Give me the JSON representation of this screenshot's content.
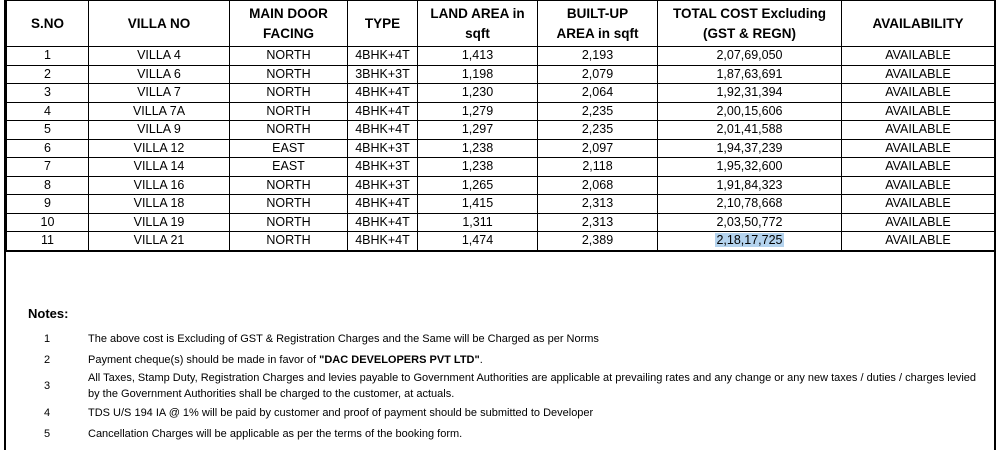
{
  "table": {
    "headers": [
      [
        "S.NO"
      ],
      [
        "VILLA NO"
      ],
      [
        "MAIN DOOR",
        "FACING"
      ],
      [
        "TYPE"
      ],
      [
        "LAND AREA in",
        "sqft"
      ],
      [
        "BUILT-UP",
        "AREA in sqft"
      ],
      [
        "TOTAL COST  Excluding",
        "(GST & REGN)"
      ],
      [
        "AVAILABILITY"
      ]
    ],
    "rows": [
      [
        "1",
        "VILLA 4",
        "NORTH",
        "4BHK+4T",
        "1,413",
        "2,193",
        "2,07,69,050",
        "AVAILABLE"
      ],
      [
        "2",
        "VILLA 6",
        "NORTH",
        "3BHK+3T",
        "1,198",
        "2,079",
        "1,87,63,691",
        "AVAILABLE"
      ],
      [
        "3",
        "VILLA 7",
        "NORTH",
        "4BHK+4T",
        "1,230",
        "2,064",
        "1,92,31,394",
        "AVAILABLE"
      ],
      [
        "4",
        "VILLA 7A",
        "NORTH",
        "4BHK+4T",
        "1,279",
        "2,235",
        "2,00,15,606",
        "AVAILABLE"
      ],
      [
        "5",
        "VILLA 9",
        "NORTH",
        "4BHK+4T",
        "1,297",
        "2,235",
        "2,01,41,588",
        "AVAILABLE"
      ],
      [
        "6",
        "VILLA 12",
        "EAST",
        "4BHK+3T",
        "1,238",
        "2,097",
        "1,94,37,239",
        "AVAILABLE"
      ],
      [
        "7",
        "VILLA 14",
        "EAST",
        "4BHK+3T",
        "1,238",
        "2,118",
        "1,95,32,600",
        "AVAILABLE"
      ],
      [
        "8",
        "VILLA 16",
        "NORTH",
        "4BHK+3T",
        "1,265",
        "2,068",
        "1,91,84,323",
        "AVAILABLE"
      ],
      [
        "9",
        "VILLA 18",
        "NORTH",
        "4BHK+4T",
        "1,415",
        "2,313",
        "2,10,78,668",
        "AVAILABLE"
      ],
      [
        "10",
        "VILLA 19",
        "NORTH",
        "4BHK+4T",
        "1,311",
        "2,313",
        "2,03,50,772",
        "AVAILABLE"
      ],
      [
        "11",
        "VILLA 21",
        "NORTH",
        "4BHK+4T",
        "1,474",
        "2,389",
        "2,18,17,725",
        "AVAILABLE"
      ]
    ]
  },
  "notes": {
    "title": "Notes:",
    "items": [
      {
        "number": "1",
        "text": "The above cost is Excluding of GST & Registration Charges and the Same will be Charged as per Norms"
      },
      {
        "number": "2",
        "text": "Payment cheque(s) should be made in favor of ",
        "bold": "\"DAC DEVELOPERS PVT LTD\"",
        "after": "."
      },
      {
        "number": "3",
        "text": "All Taxes, Stamp Duty, Registration Charges and levies payable to Government Authorities are applicable at prevailing rates and any change or any new taxes / duties / charges levied by the Government Authorities shall be charged to the customer, at actuals."
      },
      {
        "number": "4",
        "text": "TDS U/S 194 IA @ 1% will be paid by customer and proof of payment should be submitted to Developer"
      },
      {
        "number": "5",
        "text": "Cancellation Charges will be applicable as per the terms of the booking form."
      }
    ]
  }
}
